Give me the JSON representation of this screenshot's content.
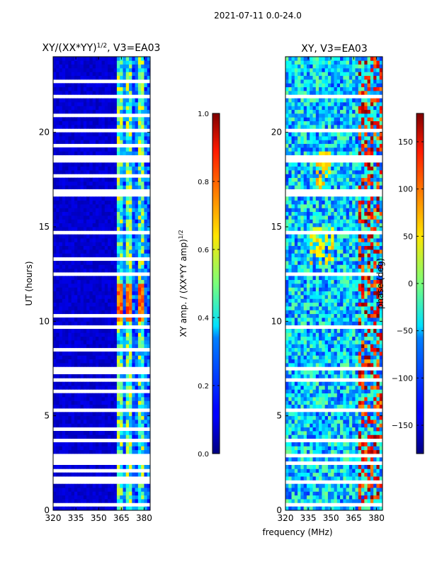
{
  "figure": {
    "suptitle": "2021-07-11 0.0-24.0"
  },
  "chart_data": [
    {
      "type": "heatmap",
      "title": "XY/(XX*YY)",
      "title_exponent": "1/2",
      "title_suffix": ", V3=EA03",
      "xlabel": "",
      "ylabel": "UT (hours)",
      "xlim": [
        320,
        384
      ],
      "ylim": [
        0,
        24
      ],
      "xticks": [
        "320",
        "335",
        "350",
        "365",
        "380"
      ],
      "yticks": [
        "0",
        "5",
        "10",
        "15",
        "20"
      ],
      "colorbar": {
        "label": "XY amp. / (XX*YY amp)",
        "label_exponent": "1/2",
        "range": [
          0.0,
          1.0
        ],
        "ticks": [
          "0.0",
          "0.2",
          "0.4",
          "0.6",
          "0.8",
          "1.0"
        ],
        "colormap": "jet"
      },
      "flagged_hours": [
        [
          0.2,
          0.35
        ],
        [
          0.75,
          0.85
        ],
        [
          1.4,
          1.5
        ],
        [
          1.7,
          1.8
        ],
        [
          2.0,
          2.1
        ],
        [
          2.4,
          2.5
        ],
        [
          2.65,
          2.75
        ],
        [
          2.9,
          3.0
        ],
        [
          3.35,
          3.45
        ],
        [
          3.6,
          3.7
        ],
        [
          4.2,
          4.3
        ],
        [
          5.3,
          5.4
        ],
        [
          6.2,
          6.3
        ],
        [
          6.9,
          7.0
        ],
        [
          7.2,
          7.3
        ],
        [
          7.5,
          7.6
        ],
        [
          8.4,
          8.5
        ],
        [
          9.6,
          9.7
        ],
        [
          10.2,
          10.3
        ],
        [
          12.4,
          12.6
        ],
        [
          13.3,
          13.4
        ],
        [
          14.6,
          14.7
        ],
        [
          16.6,
          16.95
        ],
        [
          17.6,
          17.7
        ],
        [
          18.35,
          18.7
        ],
        [
          19.2,
          19.3
        ],
        [
          20.0,
          20.1
        ],
        [
          20.9,
          21.0
        ],
        [
          21.8,
          21.9
        ],
        [
          22.6,
          22.7
        ]
      ],
      "bright_band_mhz": [
        [
          362,
          365
        ],
        [
          368,
          371
        ],
        [
          376,
          379
        ]
      ],
      "amplitude_summary": {
        "background": 0.05,
        "bright_band": 0.45,
        "peak": 0.85
      }
    },
    {
      "type": "heatmap",
      "title": "XY, V3=EA03",
      "xlabel": "frequency (MHz)",
      "ylabel": "",
      "xlim": [
        320,
        384
      ],
      "ylim": [
        0,
        24
      ],
      "xticks": [
        "320",
        "335",
        "350",
        "365",
        "380"
      ],
      "yticks": [
        "0",
        "5",
        "10",
        "15",
        "20"
      ],
      "colorbar": {
        "label": "phase (deg)",
        "range": [
          -180,
          180
        ],
        "ticks": [
          "−150",
          "−100",
          "−50",
          "0",
          "50",
          "100",
          "150"
        ],
        "colormap": "jet"
      },
      "flagged_hours": [
        [
          0.2,
          0.35
        ],
        [
          0.75,
          0.85
        ],
        [
          1.4,
          1.5
        ],
        [
          2.4,
          2.5
        ],
        [
          2.9,
          3.0
        ],
        [
          3.6,
          3.7
        ],
        [
          5.3,
          5.4
        ],
        [
          6.9,
          7.0
        ],
        [
          7.5,
          7.6
        ],
        [
          9.6,
          9.7
        ],
        [
          12.4,
          12.6
        ],
        [
          14.6,
          14.7
        ],
        [
          16.6,
          16.95
        ],
        [
          18.35,
          18.7
        ],
        [
          20.0,
          20.1
        ],
        [
          21.8,
          21.9
        ]
      ],
      "phase_summary": {
        "typical": -60,
        "spread": 60
      }
    }
  ]
}
